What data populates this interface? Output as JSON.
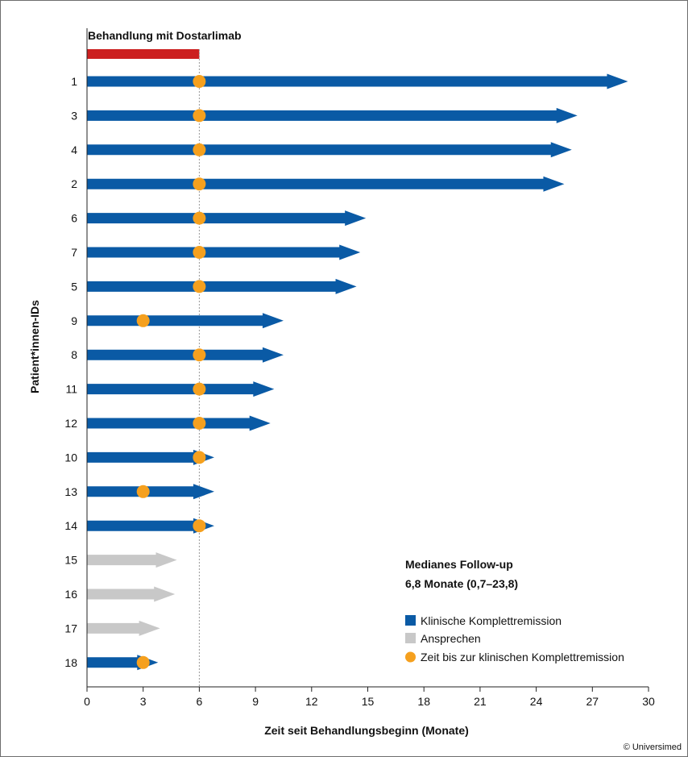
{
  "chart_data": {
    "type": "bar",
    "title": "",
    "treatment_label": "Behandlung mit Dostarlimab",
    "treatment_period": [
      0,
      6
    ],
    "xlabel": "Zeit seit Behandlungsbeginn (Monate)",
    "ylabel": "Patient*innen-IDs",
    "xlim": [
      0,
      30
    ],
    "xticks": [
      "0",
      "3",
      "6",
      "9",
      "12",
      "15",
      "18",
      "21",
      "24",
      "27",
      "30"
    ],
    "reference_line_x": 6,
    "grid": false,
    "legend_position": "bottom-right",
    "categories": [
      "1",
      "3",
      "4",
      "2",
      "6",
      "7",
      "5",
      "9",
      "8",
      "11",
      "12",
      "10",
      "13",
      "14",
      "15",
      "16",
      "17",
      "18"
    ],
    "series": [
      {
        "name": "Klinische Komplettremission",
        "color": "#0a5aa5",
        "values": [
          28.9,
          26.2,
          25.9,
          25.5,
          14.9,
          14.6,
          14.4,
          10.5,
          10.5,
          10.0,
          9.8,
          6.8,
          6.8,
          6.8,
          null,
          null,
          null,
          3.8
        ]
      },
      {
        "name": "Ansprechen",
        "color": "#c8c8c8",
        "values": [
          null,
          null,
          null,
          null,
          null,
          null,
          null,
          null,
          null,
          null,
          null,
          null,
          null,
          null,
          4.8,
          4.7,
          3.9,
          null
        ]
      },
      {
        "name": "Zeit bis zur klinischen Komplettremission",
        "type": "scatter",
        "color": "#f5a01e",
        "values": [
          6.0,
          6.0,
          6.0,
          6.0,
          6.0,
          6.0,
          6.0,
          3.0,
          6.0,
          6.0,
          6.0,
          6.0,
          3.0,
          6.0,
          null,
          null,
          null,
          3.0
        ]
      }
    ],
    "annotation": {
      "line1": "Medianes Follow-up",
      "line2": "6,8 Monate (0,7–23,8)"
    },
    "colors": {
      "treatment": "#cc1f1f",
      "refline": "#999999"
    }
  },
  "copyright": "© Universimed"
}
